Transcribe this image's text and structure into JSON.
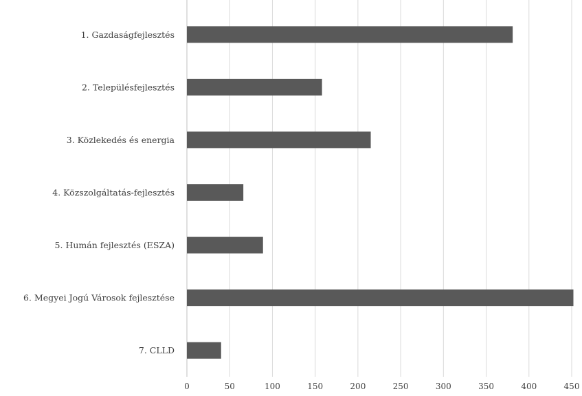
{
  "chart_data": {
    "type": "bar",
    "orientation": "horizontal",
    "categories": [
      "1. Gazdaságfejlesztés",
      "2. Településfejlesztés",
      "3. Közlekedés és energia",
      "4. Közszolgáltatás-fejlesztés",
      "5. Humán fejlesztés (ESZA)",
      "6. Megyei Jogú Városok fejlesztése",
      "7. CLLD"
    ],
    "values": [
      381,
      158,
      215,
      66,
      89,
      452,
      40
    ],
    "xlim": [
      0,
      450
    ],
    "xticks": [
      0,
      50,
      100,
      150,
      200,
      250,
      300,
      350,
      400,
      450
    ],
    "grid": true,
    "title": "",
    "xlabel": "",
    "ylabel": "",
    "bar_color": "#595959"
  }
}
